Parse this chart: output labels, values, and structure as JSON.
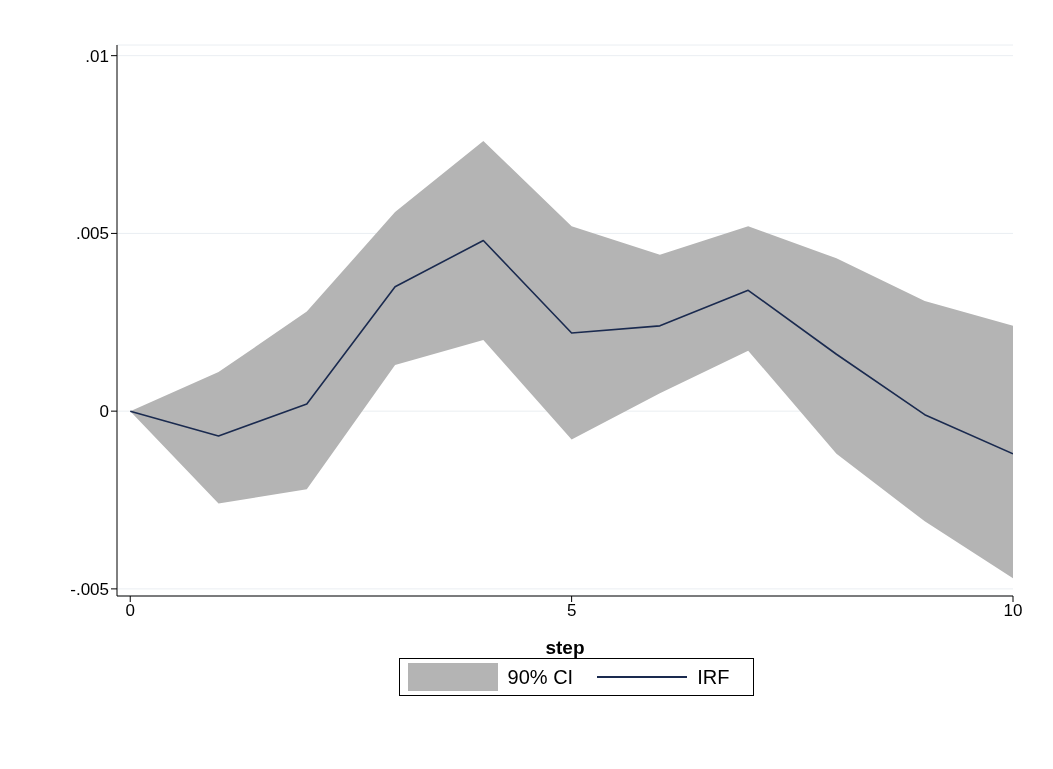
{
  "chart_data": {
    "type": "line",
    "xlabel": "step",
    "x": [
      0,
      1,
      2,
      3,
      4,
      5,
      6,
      7,
      8,
      9,
      10
    ],
    "series": [
      {
        "name": "IRF",
        "color": "#1a2a4f",
        "values": [
          0,
          -0.0007,
          0.0002,
          0.0035,
          0.0048,
          0.0022,
          0.0024,
          0.0034,
          0.0016,
          -0.0001,
          -0.0012
        ],
        "lower": [
          0,
          -0.0026,
          -0.0022,
          0.0013,
          0.002,
          -0.0008,
          0.0005,
          0.0017,
          -0.0012,
          -0.0031,
          -0.0047
        ],
        "upper": [
          0,
          0.0011,
          0.0028,
          0.0056,
          0.0076,
          0.0052,
          0.0044,
          0.0052,
          0.0043,
          0.0031,
          0.0024
        ]
      }
    ],
    "xlim": [
      -0.15,
      10
    ],
    "xticks": [
      0,
      5,
      10
    ],
    "ylim": [
      -0.0052,
      0.0103
    ],
    "yticks": [
      {
        "value": -0.005,
        "label": "-.005"
      },
      {
        "value": 0,
        "label": "0"
      },
      {
        "value": 0.005,
        "label": ".005"
      },
      {
        "value": 0.01,
        "label": ".01"
      }
    ],
    "annotations": [
      "90% CI"
    ],
    "grid": "y",
    "legend": "bottom",
    "marker": "none",
    "line_style": "solid"
  }
}
